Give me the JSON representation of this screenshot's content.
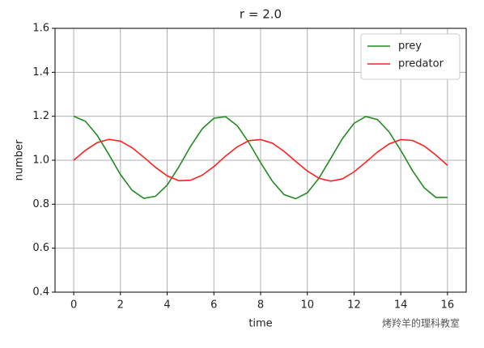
{
  "chart_data": {
    "type": "line",
    "title": "r = 2.0",
    "x_label": "time",
    "y_label": "number",
    "x": [
      0,
      0.5,
      1,
      1.5,
      2,
      2.5,
      3,
      3.5,
      4,
      4.5,
      5,
      5.5,
      6,
      6.5,
      7,
      7.5,
      8,
      8.5,
      9,
      9.5,
      10,
      10.5,
      11,
      11.5,
      12,
      12.5,
      13,
      13.5,
      14,
      14.5,
      15,
      15.5,
      16
    ],
    "series": [
      {
        "name": "prey",
        "color": "#228b22",
        "values": [
          1.2,
          1.177,
          1.114,
          1.027,
          0.935,
          0.863,
          0.827,
          0.836,
          0.887,
          0.97,
          1.063,
          1.143,
          1.191,
          1.198,
          1.157,
          1.08,
          0.989,
          0.905,
          0.844,
          0.825,
          0.852,
          0.919,
          1.008,
          1.098,
          1.168,
          1.199,
          1.185,
          1.129,
          1.045,
          0.953,
          0.875,
          0.831,
          0.831
        ]
      },
      {
        "name": "predator",
        "color": "#ff2020",
        "values": [
          1.0,
          1.045,
          1.08,
          1.095,
          1.087,
          1.057,
          1.014,
          0.968,
          0.929,
          0.907,
          0.909,
          0.932,
          0.971,
          1.019,
          1.061,
          1.089,
          1.094,
          1.078,
          1.041,
          0.995,
          0.951,
          0.918,
          0.905,
          0.915,
          0.947,
          0.991,
          1.037,
          1.074,
          1.094,
          1.09,
          1.065,
          1.024,
          0.977
        ]
      }
    ],
    "xlim": [
      -0.8,
      16.8
    ],
    "ylim": [
      0.4,
      1.6
    ],
    "xticks": [
      0,
      2,
      4,
      6,
      8,
      10,
      12,
      14,
      16
    ],
    "yticks": [
      0.4,
      0.6,
      0.8,
      {
        "value": 1,
        "label": "1.0"
      },
      1.2,
      1.4,
      1.6
    ],
    "grid": true,
    "legend": "upper right"
  },
  "watermark": "烤羚羊的理科教室"
}
